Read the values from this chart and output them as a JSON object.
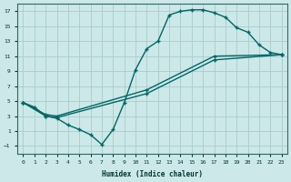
{
  "xlabel": "Humidex (Indice chaleur)",
  "bg_color": "#cce8e8",
  "line_color": "#006666",
  "grid_color": "#aacccc",
  "xlim": [
    -0.5,
    23.5
  ],
  "ylim": [
    -2,
    18
  ],
  "xticks": [
    0,
    1,
    2,
    3,
    4,
    5,
    6,
    7,
    8,
    9,
    10,
    11,
    12,
    13,
    14,
    15,
    16,
    17,
    18,
    19,
    20,
    21,
    22,
    23
  ],
  "yticks": [
    -1,
    1,
    3,
    5,
    7,
    9,
    11,
    13,
    15,
    17
  ],
  "curve1_x": [
    0,
    1,
    2,
    3,
    4,
    5,
    6,
    7,
    8,
    9,
    10,
    11,
    12,
    13,
    14,
    15,
    16,
    17,
    18,
    19,
    20,
    21,
    22,
    23
  ],
  "curve1_y": [
    4.8,
    4.2,
    3.0,
    2.7,
    1.8,
    1.2,
    0.5,
    -0.8,
    1.2,
    4.8,
    9.2,
    12.0,
    13.0,
    16.5,
    17.0,
    17.2,
    17.2,
    16.8,
    16.2,
    14.8,
    14.2,
    12.5,
    11.5,
    11.2
  ],
  "curve2_x": [
    0,
    2,
    3,
    11,
    17,
    23
  ],
  "curve2_y": [
    4.8,
    3.0,
    2.8,
    6.0,
    10.5,
    11.2
  ],
  "curve3_x": [
    0,
    2,
    3,
    11,
    17,
    23
  ],
  "curve3_y": [
    4.8,
    3.2,
    3.0,
    6.5,
    11.0,
    11.2
  ],
  "figsize": [
    3.2,
    2.0
  ],
  "dpi": 100,
  "marker": "+",
  "markersize": 3.5,
  "linewidth": 1.0
}
